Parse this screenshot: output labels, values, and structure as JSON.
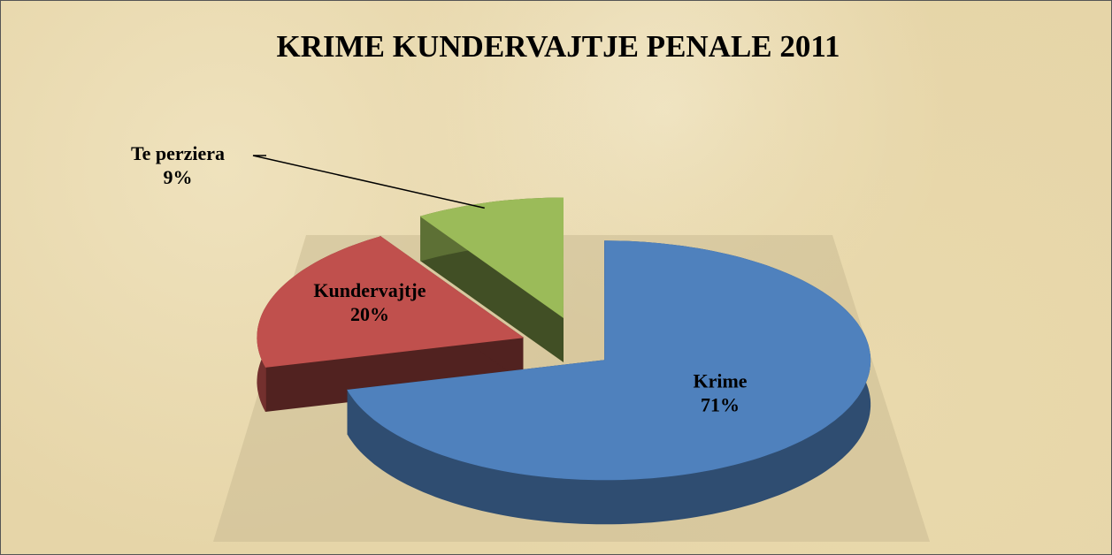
{
  "chart_data": {
    "type": "pie3d",
    "title": "KRIME KUNDERVAJTJE PENALE 2011",
    "categories": [
      "Krime",
      "Kundervajtje",
      "Te perziera"
    ],
    "values": [
      71,
      20,
      9
    ],
    "value_labels": [
      "71%",
      "20%",
      "9%"
    ],
    "colors": [
      "#4f81bd",
      "#c0504d",
      "#9bbb59"
    ]
  }
}
